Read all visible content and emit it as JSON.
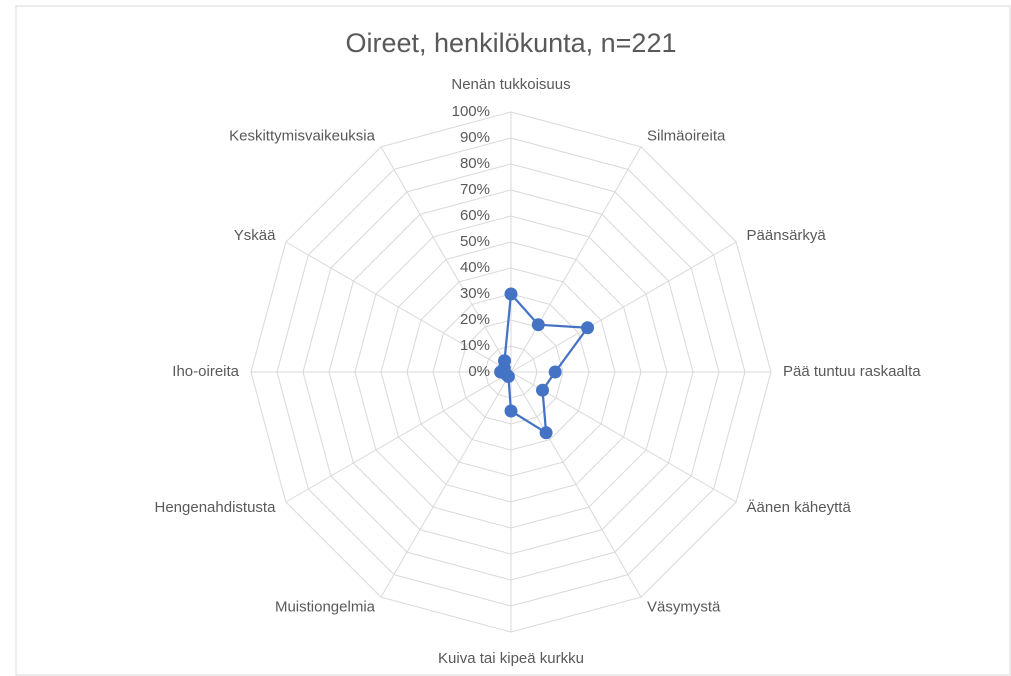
{
  "chart_data": {
    "type": "radar",
    "title": "Oireet, henkilökunta, n=221",
    "categories": [
      "Nenän tukkoisuus",
      "Silmäoireita",
      "Päänsärkyä",
      "Pää tuntuu raskaalta",
      "Äänen käheyttä",
      "Väsymystä",
      "Kuiva tai kipeä kurkku",
      "Muistiongelmia",
      "Hengenahdistusta",
      "Iho-oireita",
      "Yskää",
      "Keskittymisvaikeuksia"
    ],
    "series": [
      {
        "color": "#4472c4",
        "values": [
          30,
          21,
          34,
          17,
          14,
          27,
          15,
          2,
          2,
          4,
          3,
          5
        ]
      }
    ],
    "ylim": [
      0,
      100
    ],
    "yticks": [
      {
        "value": 0,
        "label": "0%"
      },
      {
        "value": 10,
        "label": "10%"
      },
      {
        "value": 20,
        "label": "20%"
      },
      {
        "value": 30,
        "label": "30%"
      },
      {
        "value": 40,
        "label": "40%"
      },
      {
        "value": 50,
        "label": "50%"
      },
      {
        "value": 60,
        "label": "60%"
      },
      {
        "value": 70,
        "label": "70%"
      },
      {
        "value": 80,
        "label": "80%"
      },
      {
        "value": 90,
        "label": "90%"
      },
      {
        "value": 100,
        "label": "100%"
      }
    ],
    "grid": true
  }
}
